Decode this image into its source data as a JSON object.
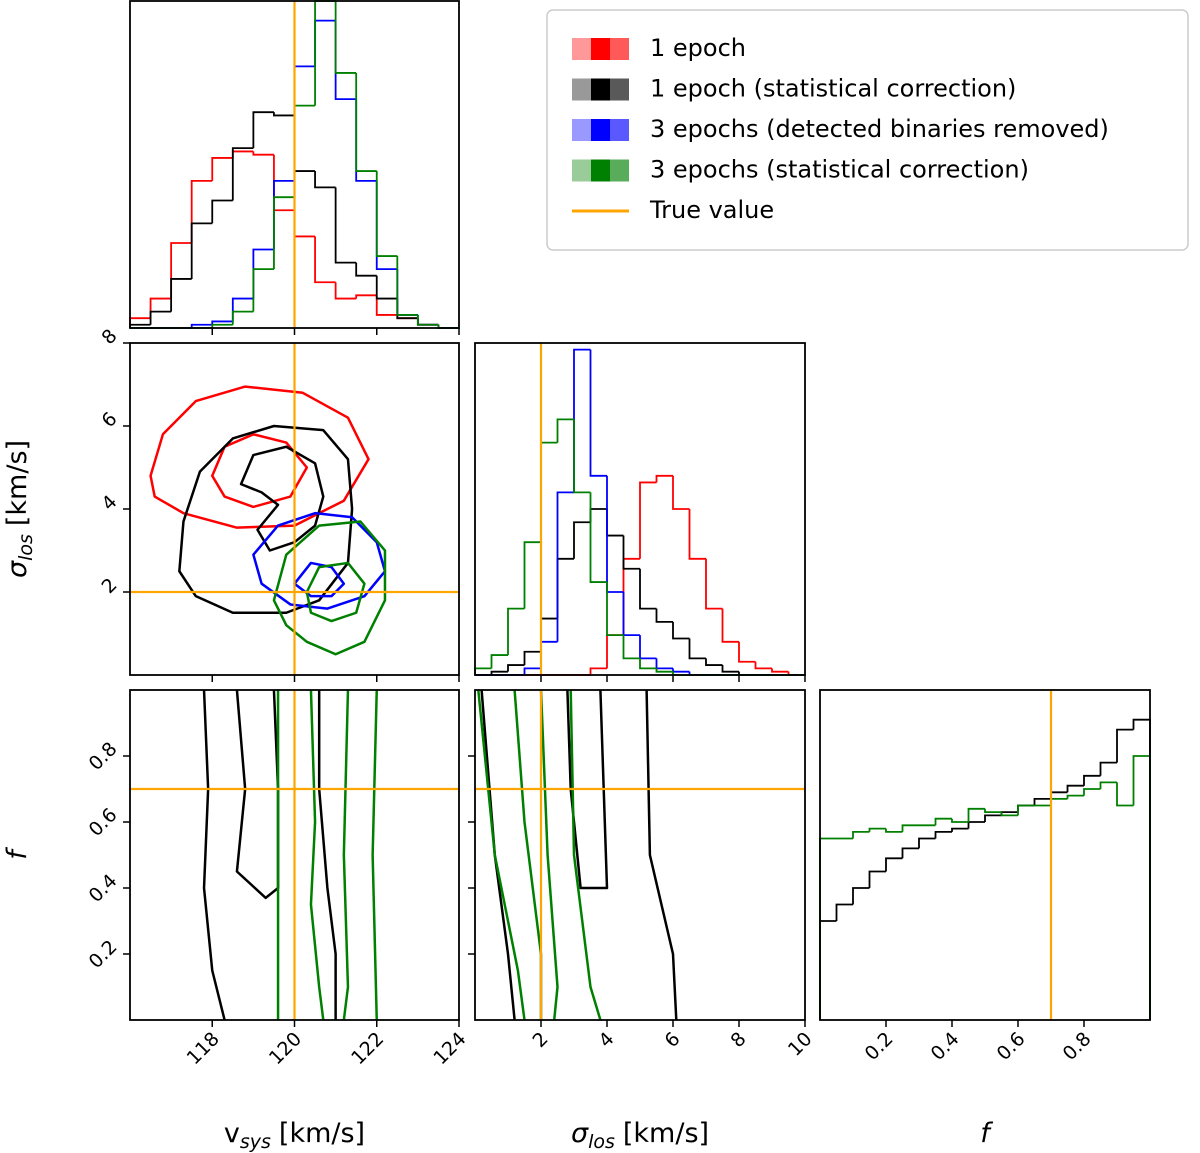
{
  "chart_data": [
    {
      "type": "histogram",
      "xlim": [
        116,
        124
      ],
      "ylim": [
        0,
        1
      ],
      "xticks": [
        118,
        120,
        122,
        124
      ],
      "xtick_labels": false,
      "bins": [
        116,
        116.5,
        117,
        117.5,
        118,
        118.5,
        119,
        119.5,
        120,
        120.5,
        121,
        121.5,
        122,
        122.5,
        123,
        123.5,
        124
      ],
      "series": [
        {
          "name": "1 epoch",
          "color": "red",
          "values": [
            0.03,
            0.09,
            0.26,
            0.45,
            0.52,
            0.54,
            0.53,
            0.36,
            0.28,
            0.14,
            0.09,
            0.1,
            0.04,
            0.03,
            0.01,
            0.0
          ]
        },
        {
          "name": "1 epoch (statistical correction)",
          "color": "black",
          "values": [
            0.01,
            0.05,
            0.15,
            0.32,
            0.39,
            0.55,
            0.66,
            0.65,
            0.48,
            0.43,
            0.2,
            0.16,
            0.09,
            0.03,
            0.01,
            0.0
          ]
        },
        {
          "name": "3 epochs (detected binaries removed)",
          "color": "blue",
          "values": [
            0,
            0,
            0,
            0.01,
            0.02,
            0.09,
            0.24,
            0.45,
            0.8,
            0.94,
            0.7,
            0.45,
            0.18,
            0.04,
            0.01,
            0
          ]
        },
        {
          "name": "3 epochs (statistical correction)",
          "color": "green",
          "values": [
            0,
            0,
            0,
            0,
            0.01,
            0.05,
            0.18,
            0.4,
            0.68,
            1.0,
            0.78,
            0.48,
            0.22,
            0.04,
            0.01,
            0
          ]
        }
      ],
      "vlines": [
        120
      ],
      "line_color": "orange",
      "legend_loc": "upper right",
      "truth_label": "True value"
    },
    {
      "type": "contour",
      "xlim": [
        116,
        124
      ],
      "ylim": [
        0,
        8
      ],
      "xticks": [
        118,
        120,
        122,
        124
      ],
      "yticks": [
        2,
        4,
        6,
        8
      ],
      "xtick_labels": false,
      "ytick_labels": true,
      "ylabel": {
        "symbol": "σ",
        "sub": "los",
        "unit": "[km/s]"
      },
      "contours": [
        {
          "color": "red",
          "closed": true,
          "x": [
            116.5,
            116.8,
            117.6,
            118.8,
            120.2,
            121.3,
            121.8,
            121.2,
            120.0,
            118.6,
            117.3,
            116.6
          ],
          "y": [
            4.8,
            5.8,
            6.6,
            6.95,
            6.8,
            6.2,
            5.2,
            4.2,
            3.6,
            3.55,
            3.9,
            4.3
          ]
        },
        {
          "color": "red",
          "closed": true,
          "x": [
            118.0,
            118.3,
            119.0,
            119.8,
            120.3,
            119.9,
            119.0,
            118.3
          ],
          "y": [
            4.8,
            5.5,
            5.8,
            5.6,
            5.0,
            4.3,
            4.05,
            4.3
          ]
        },
        {
          "color": "black",
          "closed": true,
          "x": [
            117.2,
            117.3,
            117.7,
            118.5,
            119.5,
            120.7,
            121.3,
            121.4,
            121.3,
            120.6,
            119.8,
            118.5,
            117.6
          ],
          "y": [
            2.5,
            3.7,
            4.9,
            5.7,
            6.0,
            5.9,
            5.2,
            4.0,
            2.7,
            1.8,
            1.5,
            1.5,
            1.9
          ]
        },
        {
          "color": "black",
          "closed": true,
          "x": [
            118.7,
            119.0,
            119.8,
            120.5,
            120.7,
            120.5,
            120.0,
            119.4,
            119.1,
            119.6,
            119.2
          ],
          "y": [
            4.6,
            5.3,
            5.5,
            5.1,
            4.3,
            3.6,
            3.2,
            3.0,
            3.5,
            4.1,
            4.4
          ]
        },
        {
          "color": "blue",
          "closed": true,
          "x": [
            119.0,
            119.6,
            120.5,
            121.4,
            122.0,
            122.2,
            121.7,
            120.8,
            119.9,
            119.2
          ],
          "y": [
            2.9,
            3.6,
            3.9,
            3.8,
            3.2,
            2.5,
            1.9,
            1.6,
            1.7,
            2.2
          ]
        },
        {
          "color": "blue",
          "closed": true,
          "x": [
            120.0,
            120.4,
            120.9,
            121.2,
            120.9,
            120.4
          ],
          "y": [
            2.2,
            2.7,
            2.6,
            2.2,
            1.9,
            1.9
          ]
        },
        {
          "color": "green",
          "closed": true,
          "x": [
            119.5,
            119.8,
            120.6,
            121.6,
            122.2,
            122.2,
            121.7,
            121.0,
            120.3,
            119.8
          ],
          "y": [
            1.8,
            2.9,
            3.6,
            3.7,
            3.0,
            1.8,
            0.8,
            0.5,
            0.8,
            1.2
          ]
        },
        {
          "color": "green",
          "closed": true,
          "x": [
            120.3,
            120.6,
            121.3,
            121.7,
            121.5,
            120.9,
            120.4
          ],
          "y": [
            2.0,
            2.6,
            2.7,
            2.2,
            1.5,
            1.3,
            1.5
          ]
        }
      ],
      "vlines": [
        120
      ],
      "hlines": [
        2
      ],
      "line_color": "orange"
    },
    {
      "type": "histogram",
      "xlim": [
        0,
        10
      ],
      "ylim": [
        0,
        1
      ],
      "xticks": [
        2,
        4,
        6,
        8,
        10
      ],
      "xtick_labels": false,
      "bins": [
        0,
        0.5,
        1,
        1.5,
        2,
        2.5,
        3,
        3.5,
        4,
        4.5,
        5,
        5.5,
        6,
        6.5,
        7,
        7.5,
        8,
        8.5,
        9,
        9.5,
        10
      ],
      "series": [
        {
          "color": "red",
          "values": [
            0,
            0,
            0,
            0,
            0,
            0,
            0,
            0.02,
            0.12,
            0.35,
            0.58,
            0.6,
            0.5,
            0.35,
            0.2,
            0.1,
            0.04,
            0.02,
            0.01,
            0
          ]
        },
        {
          "color": "black",
          "values": [
            0,
            0.01,
            0.03,
            0.07,
            0.17,
            0.35,
            0.46,
            0.5,
            0.42,
            0.32,
            0.2,
            0.16,
            0.11,
            0.05,
            0.03,
            0.01,
            0,
            0,
            0,
            0
          ]
        },
        {
          "color": "blue",
          "values": [
            0,
            0,
            0,
            0.02,
            0.1,
            0.55,
            0.98,
            0.6,
            0.25,
            0.12,
            0.05,
            0.02,
            0.01,
            0,
            0,
            0,
            0,
            0,
            0,
            0
          ]
        },
        {
          "color": "green",
          "values": [
            0.02,
            0.06,
            0.2,
            0.4,
            0.7,
            0.77,
            0.55,
            0.28,
            0.12,
            0.05,
            0.02,
            0.01,
            0,
            0,
            0,
            0,
            0,
            0,
            0,
            0
          ]
        }
      ],
      "vlines": [
        2
      ],
      "line_color": "orange"
    },
    {
      "type": "contour",
      "xlim": [
        116,
        124
      ],
      "ylim": [
        0,
        1
      ],
      "xticks": [
        118,
        120,
        122,
        124
      ],
      "yticks": [
        0.2,
        0.4,
        0.6,
        0.8
      ],
      "xtick_labels": true,
      "ytick_labels": true,
      "xlabel": {
        "symbol": "v",
        "sub": "sys",
        "unit": "[km/s]"
      },
      "ylabel": {
        "symbol": "f"
      },
      "contours": [
        {
          "color": "black",
          "closed": false,
          "x": [
            117.8,
            117.9,
            117.8,
            118.0,
            118.3
          ],
          "y": [
            1.0,
            0.7,
            0.4,
            0.15,
            0
          ]
        },
        {
          "color": "black",
          "closed": false,
          "x": [
            120.6,
            120.6,
            120.8,
            121.0,
            121.0
          ],
          "y": [
            1.0,
            0.7,
            0.4,
            0.2,
            0
          ]
        },
        {
          "color": "black",
          "closed": false,
          "x": [
            118.6,
            118.8,
            118.6,
            119.3,
            119.6,
            119.6,
            119.5
          ],
          "y": [
            1.0,
            0.7,
            0.45,
            0.37,
            0.4,
            0.7,
            1.0
          ]
        },
        {
          "color": "green",
          "closed": false,
          "x": [
            119.6,
            119.6,
            119.6
          ],
          "y": [
            1.0,
            0.5,
            0
          ]
        },
        {
          "color": "green",
          "closed": false,
          "x": [
            122.0,
            121.9,
            122.0
          ],
          "y": [
            1.0,
            0.5,
            0
          ]
        },
        {
          "color": "green",
          "closed": false,
          "x": [
            120.4,
            120.5,
            120.4,
            120.6,
            120.7
          ],
          "y": [
            1.0,
            0.6,
            0.35,
            0.1,
            0
          ]
        },
        {
          "color": "green",
          "closed": false,
          "x": [
            121.3,
            121.2,
            121.3,
            121.2
          ],
          "y": [
            1.0,
            0.5,
            0.1,
            0
          ]
        }
      ],
      "vlines": [
        120
      ],
      "hlines": [
        0.7
      ],
      "line_color": "orange"
    },
    {
      "type": "contour",
      "xlim": [
        0,
        10
      ],
      "ylim": [
        0,
        1
      ],
      "xticks": [
        2,
        4,
        6,
        8,
        10
      ],
      "yticks": [
        0.2,
        0.4,
        0.6,
        0.8
      ],
      "xtick_labels": true,
      "ytick_labels": false,
      "xlabel": {
        "symbol": "σ",
        "sub": "los",
        "unit": "[km/s]"
      },
      "contours": [
        {
          "color": "black",
          "closed": false,
          "x": [
            0.2,
            0.6,
            1.0,
            1.2
          ],
          "y": [
            1.0,
            0.5,
            0.2,
            0
          ]
        },
        {
          "color": "black",
          "closed": false,
          "x": [
            5.2,
            5.3,
            6.0,
            6.1
          ],
          "y": [
            1.0,
            0.5,
            0.2,
            0
          ]
        },
        {
          "color": "black",
          "closed": false,
          "x": [
            2.8,
            2.9,
            3.2,
            4.0,
            3.9,
            3.8
          ],
          "y": [
            1.0,
            0.7,
            0.4,
            0.4,
            0.7,
            1.0
          ]
        },
        {
          "color": "green",
          "closed": false,
          "x": [
            0.1,
            0.6,
            1.3,
            1.5
          ],
          "y": [
            1.0,
            0.5,
            0.15,
            0
          ]
        },
        {
          "color": "green",
          "closed": false,
          "x": [
            2.9,
            3.0,
            3.5,
            3.8
          ],
          "y": [
            1.0,
            0.5,
            0.1,
            0
          ]
        },
        {
          "color": "green",
          "closed": false,
          "x": [
            1.2,
            1.5,
            2.0,
            2.0
          ],
          "y": [
            1.0,
            0.6,
            0.2,
            0
          ]
        },
        {
          "color": "green",
          "closed": false,
          "x": [
            2.0,
            2.2,
            2.5,
            2.4
          ],
          "y": [
            1.0,
            0.5,
            0.1,
            0
          ]
        }
      ],
      "vlines": [
        2
      ],
      "hlines": [
        0.7
      ],
      "line_color": "orange"
    },
    {
      "type": "histogram",
      "xlim": [
        0,
        1
      ],
      "ylim": [
        0,
        1
      ],
      "xticks": [
        0.2,
        0.4,
        0.6,
        0.8
      ],
      "xtick_labels": true,
      "xlabel": {
        "symbol": "f"
      },
      "bins": [
        0,
        0.05,
        0.1,
        0.15,
        0.2,
        0.25,
        0.3,
        0.35,
        0.4,
        0.45,
        0.5,
        0.55,
        0.6,
        0.65,
        0.7,
        0.75,
        0.8,
        0.85,
        0.9,
        0.95,
        1
      ],
      "series": [
        {
          "color": "black",
          "values": [
            0.3,
            0.35,
            0.4,
            0.45,
            0.49,
            0.52,
            0.55,
            0.57,
            0.58,
            0.6,
            0.62,
            0.63,
            0.65,
            0.67,
            0.69,
            0.71,
            0.74,
            0.78,
            0.88,
            0.91
          ]
        },
        {
          "color": "green",
          "values": [
            0.55,
            0.55,
            0.57,
            0.58,
            0.57,
            0.59,
            0.59,
            0.61,
            0.6,
            0.64,
            0.63,
            0.62,
            0.65,
            0.65,
            0.67,
            0.68,
            0.7,
            0.72,
            0.65,
            0.8
          ]
        }
      ],
      "vlines": [
        0.7
      ],
      "line_color": "orange"
    }
  ]
}
